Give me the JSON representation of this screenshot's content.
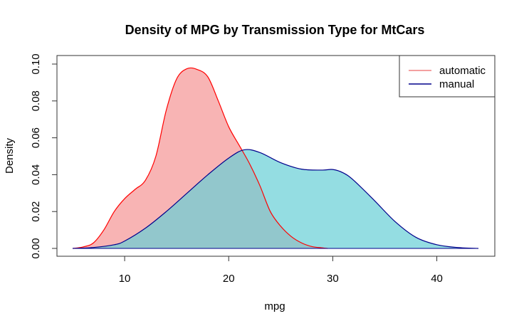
{
  "chart_data": {
    "type": "area",
    "title": "Density of MPG by Transmission Type for MtCars",
    "xlabel": "mpg",
    "ylabel": "Density",
    "xlim": [
      5,
      44
    ],
    "ylim": [
      0,
      0.1
    ],
    "x_ticks": [
      {
        "value": 10,
        "label": "10"
      },
      {
        "value": 20,
        "label": "20"
      },
      {
        "value": 30,
        "label": "30"
      },
      {
        "value": 40,
        "label": "40"
      }
    ],
    "y_ticks": [
      {
        "value": 0.0,
        "label": "0.00"
      },
      {
        "value": 0.02,
        "label": "0.02"
      },
      {
        "value": 0.04,
        "label": "0.04"
      },
      {
        "value": 0.06,
        "label": "0.06"
      },
      {
        "value": 0.08,
        "label": "0.08"
      },
      {
        "value": 0.1,
        "label": "0.10"
      }
    ],
    "grid": false,
    "legend_position": "top-right",
    "series": [
      {
        "name": "automatic",
        "line_color": "#ff0000",
        "legend_color": "#f08080",
        "fill_color": "#f6a1a1",
        "fill_opacity": 0.8,
        "points": [
          [
            5.0,
            0.0
          ],
          [
            6.0,
            0.0008
          ],
          [
            7.0,
            0.003
          ],
          [
            8.0,
            0.01
          ],
          [
            9.0,
            0.02
          ],
          [
            10.0,
            0.027
          ],
          [
            11.0,
            0.032
          ],
          [
            12.0,
            0.037
          ],
          [
            13.0,
            0.05
          ],
          [
            14.0,
            0.075
          ],
          [
            15.0,
            0.092
          ],
          [
            16.0,
            0.0975
          ],
          [
            17.0,
            0.097
          ],
          [
            18.0,
            0.093
          ],
          [
            19.0,
            0.08
          ],
          [
            20.0,
            0.066
          ],
          [
            21.0,
            0.056
          ],
          [
            22.0,
            0.046
          ],
          [
            23.0,
            0.034
          ],
          [
            24.0,
            0.02
          ],
          [
            25.0,
            0.012
          ],
          [
            26.0,
            0.0065
          ],
          [
            27.0,
            0.003
          ],
          [
            28.0,
            0.001
          ],
          [
            29.0,
            0.0003
          ],
          [
            29.5,
            0.0
          ]
        ]
      },
      {
        "name": "manual",
        "line_color": "#00008b",
        "legend_color": "#00008b",
        "fill_color": "#66ced6",
        "fill_opacity": 0.7,
        "points": [
          [
            5.0,
            0.0
          ],
          [
            7.0,
            0.0005
          ],
          [
            9.0,
            0.002
          ],
          [
            10.0,
            0.004
          ],
          [
            12.0,
            0.011
          ],
          [
            14.0,
            0.02
          ],
          [
            16.0,
            0.03
          ],
          [
            18.0,
            0.04
          ],
          [
            20.0,
            0.049
          ],
          [
            21.5,
            0.0535
          ],
          [
            23.0,
            0.052
          ],
          [
            25.0,
            0.0465
          ],
          [
            27.0,
            0.043
          ],
          [
            29.0,
            0.0425
          ],
          [
            30.0,
            0.0428
          ],
          [
            31.0,
            0.041
          ],
          [
            32.0,
            0.037
          ],
          [
            34.0,
            0.026
          ],
          [
            36.0,
            0.0145
          ],
          [
            38.0,
            0.006
          ],
          [
            40.0,
            0.002
          ],
          [
            42.0,
            0.0005
          ],
          [
            44.0,
            0.0
          ]
        ]
      }
    ]
  }
}
